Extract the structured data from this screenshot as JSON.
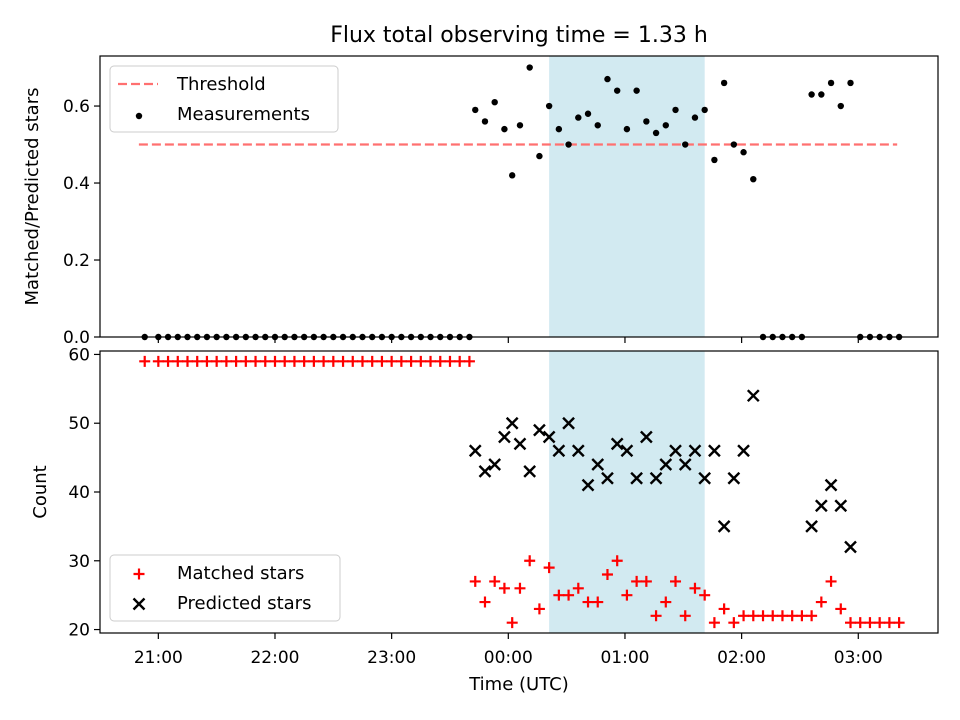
{
  "title": "Flux total observing time = 1.33 h",
  "colors": {
    "threshold": "#ff7070",
    "measurements": "#000000",
    "matched": "#ff0000",
    "predicted": "#000000",
    "highlight": "#add8e6"
  },
  "chart_data": [
    {
      "type": "scatter",
      "ylabel": "Matched/Predicted stars",
      "ylim": [
        0,
        0.73
      ],
      "y_ticks": [
        "0.0",
        "0.2",
        "0.4",
        "0.6"
      ],
      "legend_position": "top-left",
      "highlight_span": {
        "start": "00:21",
        "end": "01:41"
      },
      "threshold": {
        "name": "Threshold",
        "y": 0.5,
        "x_start": "20:50",
        "x_end": "03:20"
      },
      "series": [
        {
          "name": "Measurements",
          "points": [
            [
              "20:53",
              0
            ],
            [
              "21:00",
              0
            ],
            [
              "21:05",
              0
            ],
            [
              "21:10",
              0
            ],
            [
              "21:15",
              0
            ],
            [
              "21:20",
              0
            ],
            [
              "21:25",
              0
            ],
            [
              "21:30",
              0
            ],
            [
              "21:35",
              0
            ],
            [
              "21:40",
              0
            ],
            [
              "21:45",
              0
            ],
            [
              "21:50",
              0
            ],
            [
              "21:55",
              0
            ],
            [
              "22:00",
              0
            ],
            [
              "22:05",
              0
            ],
            [
              "22:10",
              0
            ],
            [
              "22:15",
              0
            ],
            [
              "22:20",
              0
            ],
            [
              "22:25",
              0
            ],
            [
              "22:30",
              0
            ],
            [
              "22:35",
              0
            ],
            [
              "22:40",
              0
            ],
            [
              "22:45",
              0
            ],
            [
              "22:50",
              0
            ],
            [
              "22:55",
              0
            ],
            [
              "23:00",
              0
            ],
            [
              "23:05",
              0
            ],
            [
              "23:10",
              0
            ],
            [
              "23:15",
              0
            ],
            [
              "23:20",
              0
            ],
            [
              "23:25",
              0
            ],
            [
              "23:30",
              0
            ],
            [
              "23:35",
              0
            ],
            [
              "23:40",
              0
            ],
            [
              "23:43",
              0.59
            ],
            [
              "23:48",
              0.56
            ],
            [
              "23:53",
              0.61
            ],
            [
              "23:58",
              0.54
            ],
            [
              "00:02",
              0.42
            ],
            [
              "00:06",
              0.55
            ],
            [
              "00:11",
              0.7
            ],
            [
              "00:16",
              0.47
            ],
            [
              "00:21",
              0.6
            ],
            [
              "00:26",
              0.54
            ],
            [
              "00:31",
              0.5
            ],
            [
              "00:36",
              0.57
            ],
            [
              "00:41",
              0.58
            ],
            [
              "00:46",
              0.55
            ],
            [
              "00:51",
              0.67
            ],
            [
              "00:56",
              0.64
            ],
            [
              "01:01",
              0.54
            ],
            [
              "01:06",
              0.64
            ],
            [
              "01:11",
              0.56
            ],
            [
              "01:16",
              0.53
            ],
            [
              "01:21",
              0.55
            ],
            [
              "01:26",
              0.59
            ],
            [
              "01:31",
              0.5
            ],
            [
              "01:36",
              0.57
            ],
            [
              "01:41",
              0.59
            ],
            [
              "01:46",
              0.46
            ],
            [
              "01:51",
              0.66
            ],
            [
              "01:56",
              0.5
            ],
            [
              "02:01",
              0.48
            ],
            [
              "02:06",
              0.41
            ],
            [
              "02:11",
              0
            ],
            [
              "02:16",
              0
            ],
            [
              "02:21",
              0
            ],
            [
              "02:26",
              0
            ],
            [
              "02:31",
              0
            ],
            [
              "02:36",
              0.63
            ],
            [
              "02:41",
              0.63
            ],
            [
              "02:46",
              0.66
            ],
            [
              "02:51",
              0.6
            ],
            [
              "02:56",
              0.66
            ],
            [
              "03:01",
              0
            ],
            [
              "03:06",
              0
            ],
            [
              "03:11",
              0
            ],
            [
              "03:16",
              0
            ],
            [
              "03:21",
              0
            ]
          ]
        }
      ]
    },
    {
      "type": "scatter",
      "xlabel": "Time (UTC)",
      "ylabel": "Count",
      "xlim": [
        "20:30",
        "03:41"
      ],
      "ylim": [
        19.5,
        60.5
      ],
      "x_ticks": [
        "21:00",
        "22:00",
        "23:00",
        "00:00",
        "01:00",
        "02:00",
        "03:00"
      ],
      "y_ticks": [
        "20",
        "30",
        "40",
        "50",
        "60"
      ],
      "legend_position": "bottom-left",
      "highlight_span": {
        "start": "00:21",
        "end": "01:41"
      },
      "series": [
        {
          "name": "Matched stars",
          "marker": "plus",
          "points": [
            [
              "20:53",
              59
            ],
            [
              "21:00",
              59
            ],
            [
              "21:05",
              59
            ],
            [
              "21:10",
              59
            ],
            [
              "21:15",
              59
            ],
            [
              "21:20",
              59
            ],
            [
              "21:25",
              59
            ],
            [
              "21:30",
              59
            ],
            [
              "21:35",
              59
            ],
            [
              "21:40",
              59
            ],
            [
              "21:45",
              59
            ],
            [
              "21:50",
              59
            ],
            [
              "21:55",
              59
            ],
            [
              "22:00",
              59
            ],
            [
              "22:05",
              59
            ],
            [
              "22:10",
              59
            ],
            [
              "22:15",
              59
            ],
            [
              "22:20",
              59
            ],
            [
              "22:25",
              59
            ],
            [
              "22:30",
              59
            ],
            [
              "22:35",
              59
            ],
            [
              "22:40",
              59
            ],
            [
              "22:45",
              59
            ],
            [
              "22:50",
              59
            ],
            [
              "22:55",
              59
            ],
            [
              "23:00",
              59
            ],
            [
              "23:05",
              59
            ],
            [
              "23:10",
              59
            ],
            [
              "23:15",
              59
            ],
            [
              "23:20",
              59
            ],
            [
              "23:25",
              59
            ],
            [
              "23:30",
              59
            ],
            [
              "23:35",
              59
            ],
            [
              "23:40",
              59
            ],
            [
              "23:43",
              27
            ],
            [
              "23:48",
              24
            ],
            [
              "23:53",
              27
            ],
            [
              "23:58",
              26
            ],
            [
              "00:02",
              21
            ],
            [
              "00:06",
              26
            ],
            [
              "00:11",
              30
            ],
            [
              "00:16",
              23
            ],
            [
              "00:21",
              29
            ],
            [
              "00:26",
              25
            ],
            [
              "00:31",
              25
            ],
            [
              "00:36",
              26
            ],
            [
              "00:41",
              24
            ],
            [
              "00:46",
              24
            ],
            [
              "00:51",
              28
            ],
            [
              "00:56",
              30
            ],
            [
              "01:01",
              25
            ],
            [
              "01:06",
              27
            ],
            [
              "01:11",
              27
            ],
            [
              "01:16",
              22
            ],
            [
              "01:21",
              24
            ],
            [
              "01:26",
              27
            ],
            [
              "01:31",
              22
            ],
            [
              "01:36",
              26
            ],
            [
              "01:41",
              25
            ],
            [
              "01:46",
              21
            ],
            [
              "01:51",
              23
            ],
            [
              "01:56",
              21
            ],
            [
              "02:01",
              22
            ],
            [
              "02:06",
              22
            ],
            [
              "02:11",
              22
            ],
            [
              "02:16",
              22
            ],
            [
              "02:21",
              22
            ],
            [
              "02:26",
              22
            ],
            [
              "02:31",
              22
            ],
            [
              "02:36",
              22
            ],
            [
              "02:41",
              24
            ],
            [
              "02:46",
              27
            ],
            [
              "02:51",
              23
            ],
            [
              "02:56",
              21
            ],
            [
              "03:01",
              21
            ],
            [
              "03:06",
              21
            ],
            [
              "03:11",
              21
            ],
            [
              "03:16",
              21
            ],
            [
              "03:21",
              21
            ]
          ]
        },
        {
          "name": "Predicted stars",
          "marker": "x",
          "points": [
            [
              "23:43",
              46
            ],
            [
              "23:48",
              43
            ],
            [
              "23:53",
              44
            ],
            [
              "23:58",
              48
            ],
            [
              "00:02",
              50
            ],
            [
              "00:06",
              47
            ],
            [
              "00:11",
              43
            ],
            [
              "00:16",
              49
            ],
            [
              "00:21",
              48
            ],
            [
              "00:26",
              46
            ],
            [
              "00:31",
              50
            ],
            [
              "00:36",
              46
            ],
            [
              "00:41",
              41
            ],
            [
              "00:46",
              44
            ],
            [
              "00:51",
              42
            ],
            [
              "00:56",
              47
            ],
            [
              "01:01",
              46
            ],
            [
              "01:06",
              42
            ],
            [
              "01:11",
              48
            ],
            [
              "01:16",
              42
            ],
            [
              "01:21",
              44
            ],
            [
              "01:26",
              46
            ],
            [
              "01:31",
              44
            ],
            [
              "01:36",
              46
            ],
            [
              "01:41",
              42
            ],
            [
              "01:46",
              46
            ],
            [
              "01:51",
              35
            ],
            [
              "01:56",
              42
            ],
            [
              "02:01",
              46
            ],
            [
              "02:06",
              54
            ],
            [
              "02:36",
              35
            ],
            [
              "02:41",
              38
            ],
            [
              "02:46",
              41
            ],
            [
              "02:51",
              38
            ],
            [
              "02:56",
              32
            ]
          ]
        }
      ]
    }
  ]
}
